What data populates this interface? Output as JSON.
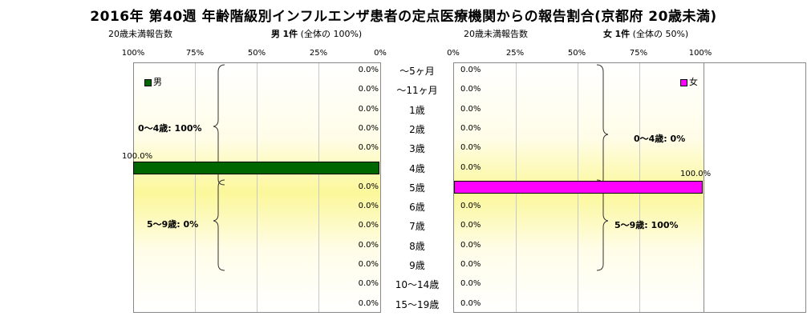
{
  "title": "2016年 第40週 年齢階級別インフルエンザ患者の定点医療機関からの報告割合(京都府 20歳未満)",
  "left": {
    "label": "20歳未満報告数",
    "sex": "男",
    "count": "1件",
    "share": "(全体の 100%)",
    "ticks": [
      "100%",
      "75%",
      "50%",
      "25%",
      "0%"
    ],
    "legend": "男",
    "color": "#006600",
    "groups": [
      {
        "label": "0～4歳: 100%"
      },
      {
        "label": "5～9歳: 0%"
      }
    ]
  },
  "right": {
    "label": "20歳未満報告数",
    "sex": "女",
    "count": "1件",
    "share": "(全体の 50%)",
    "ticks": [
      "0%",
      "25%",
      "50%",
      "75%",
      "100%"
    ],
    "legend": "女",
    "color": "#ff00ff",
    "groups": [
      {
        "label": "0～4歳: 0%"
      },
      {
        "label": "5～9歳: 100%"
      }
    ]
  },
  "chart_data": {
    "type": "bar",
    "orientation": "horizontal",
    "categories": [
      "～5ヶ月",
      "～11ヶ月",
      "1歳",
      "2歳",
      "3歳",
      "4歳",
      "5歳",
      "6歳",
      "7歳",
      "8歳",
      "9歳",
      "10～14歳",
      "15～19歳"
    ],
    "series": [
      {
        "name": "男",
        "values": [
          0,
          0,
          0,
          0,
          0,
          100,
          0,
          0,
          0,
          0,
          0,
          0,
          0
        ],
        "labels": [
          "0.0%",
          "0.0%",
          "0.0%",
          "0.0%",
          "0.0%",
          "100.0%",
          "0.0%",
          "0.0%",
          "0.0%",
          "0.0%",
          "0.0%",
          "0.0%",
          "0.0%"
        ]
      },
      {
        "name": "女",
        "values": [
          0,
          0,
          0,
          0,
          0,
          0,
          100,
          0,
          0,
          0,
          0,
          0,
          0
        ],
        "labels": [
          "0.0%",
          "0.0%",
          "0.0%",
          "0.0%",
          "0.0%",
          "0.0%",
          "100.0%",
          "0.0%",
          "0.0%",
          "0.0%",
          "0.0%",
          "0.0%",
          "0.0%"
        ]
      }
    ],
    "xlim": [
      0,
      100
    ],
    "grid": true
  }
}
